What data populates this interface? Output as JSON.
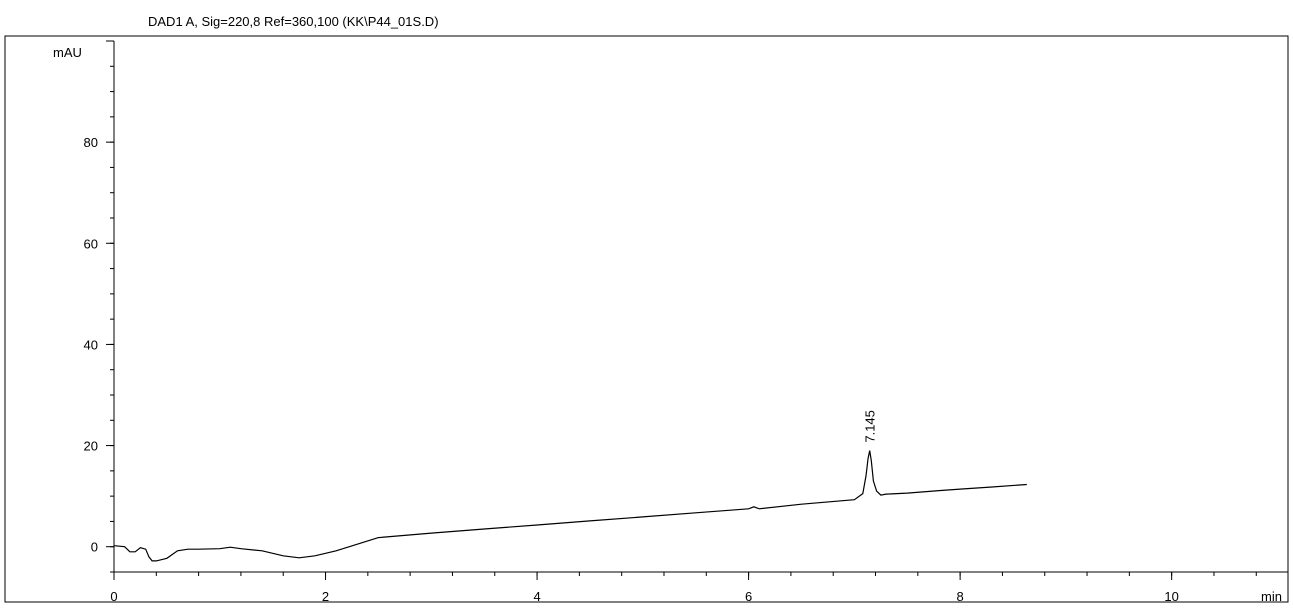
{
  "chart_data": {
    "type": "line",
    "title": "DAD1 A, Sig=220,8 Ref=360,100 (KK\\P44_01S.D)",
    "xlabel": "min",
    "ylabel": "mAU",
    "xlim": [
      0,
      11.1
    ],
    "ylim": [
      -5,
      100
    ],
    "x_ticks": [
      0,
      2,
      4,
      6,
      8,
      10
    ],
    "y_ticks": [
      0,
      20,
      40,
      60,
      80
    ],
    "grid": false,
    "legend": "none",
    "series": [
      {
        "x": [
          0.0,
          0.1,
          0.15,
          0.2,
          0.25,
          0.3,
          0.33,
          0.36,
          0.4,
          0.5,
          0.6,
          0.7,
          0.8,
          1.0,
          1.1,
          1.2,
          1.4,
          1.6,
          1.75,
          1.9,
          2.1,
          2.3,
          2.5,
          3.0,
          3.5,
          4.0,
          4.5,
          5.0,
          5.5,
          6.0,
          6.05,
          6.1,
          6.5,
          7.0,
          7.08,
          7.11,
          7.13,
          7.145,
          7.16,
          7.18,
          7.21,
          7.25,
          7.3,
          7.5,
          7.8,
          8.0,
          8.3,
          8.63
        ],
        "y": [
          0.2,
          0.0,
          -1.0,
          -1.0,
          -0.2,
          -0.5,
          -2.0,
          -2.8,
          -2.8,
          -2.3,
          -0.8,
          -0.5,
          -0.5,
          -0.4,
          -0.1,
          -0.4,
          -0.8,
          -1.8,
          -2.2,
          -1.8,
          -0.8,
          0.5,
          1.8,
          2.7,
          3.5,
          4.3,
          5.1,
          5.9,
          6.7,
          7.5,
          7.9,
          7.5,
          8.4,
          9.3,
          10.5,
          14.0,
          17.5,
          19.0,
          17.0,
          13.0,
          11.0,
          10.2,
          10.4,
          10.6,
          11.1,
          11.4,
          11.8,
          12.3
        ]
      }
    ],
    "annotations": [
      {
        "text": "7.145",
        "x": 7.145,
        "y": 19.0
      }
    ]
  }
}
